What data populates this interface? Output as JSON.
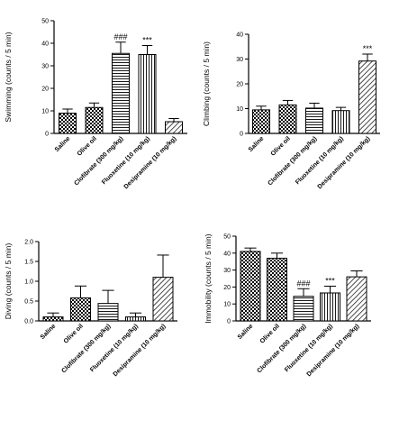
{
  "chart_data": [
    {
      "type": "bar",
      "ylabel": "Swimming (counts / 5 min)",
      "ylim": [
        0,
        50
      ],
      "yticks": [
        "0",
        "10",
        "20",
        "30",
        "40",
        "50"
      ],
      "categories": [
        "Saline",
        "Olive oil",
        "Clofibrate (300 mg/kg)",
        "Fluoxetine (10 mg/kg)",
        "Desipramine (10 mg/kg)"
      ],
      "values": [
        9,
        11.5,
        35.5,
        35,
        5.2
      ],
      "errors": [
        1.8,
        2.0,
        5.0,
        4.0,
        1.4
      ],
      "patterns": [
        "checker",
        "checker",
        "hlines",
        "vlines",
        "diag"
      ],
      "annotations": [
        "",
        "",
        "###",
        "***",
        ""
      ]
    },
    {
      "type": "bar",
      "ylabel": "Climbing (counts / 5 min)",
      "ylim": [
        0,
        40
      ],
      "yticks": [
        "0",
        "10",
        "20",
        "30",
        "40"
      ],
      "categories": [
        "Saline",
        "Olive oil",
        "Clofibrate (300 mg/kg)",
        "Fluoxetine (10 mg/kg)",
        "Desipramine (10 mg/kg)"
      ],
      "values": [
        9.5,
        11.5,
        10.2,
        9.2,
        29.2
      ],
      "errors": [
        1.5,
        1.8,
        2.0,
        1.3,
        2.8
      ],
      "patterns": [
        "checker",
        "checker",
        "hlines",
        "vlines",
        "diag"
      ],
      "annotations": [
        "",
        "",
        "",
        "",
        "***"
      ]
    },
    {
      "type": "bar",
      "ylabel": "Diving (counts / 5 min)",
      "ylim": [
        0,
        2.0
      ],
      "yticks": [
        "0.0",
        "0.5",
        "1.0",
        "1.5",
        "2.0"
      ],
      "categories": [
        "Saline",
        "Olive oil",
        "Clofibrate (300 mg/kg)",
        "Fluoxetine (10 mg/kg)",
        "Desipramine (10 mg/kg)"
      ],
      "values": [
        0.1,
        0.58,
        0.44,
        0.1,
        1.1
      ],
      "errors": [
        0.1,
        0.3,
        0.33,
        0.1,
        0.56
      ],
      "patterns": [
        "checker",
        "checker",
        "hlines",
        "vlines",
        "diag"
      ],
      "annotations": [
        "",
        "",
        "",
        "",
        ""
      ]
    },
    {
      "type": "bar",
      "ylabel": "Immobility (counts / 5 min)",
      "ylim": [
        0,
        50
      ],
      "yticks": [
        "0",
        "10",
        "20",
        "30",
        "40",
        "50"
      ],
      "categories": [
        "Saline",
        "Olive oil",
        "Clofibrate (300 mg/kg)",
        "Fluoxetine (10 mg/kg)",
        "Desipramine (10 mg/kg)"
      ],
      "values": [
        41,
        37,
        14.5,
        16.5,
        26
      ],
      "errors": [
        2.0,
        3.0,
        4.5,
        4.0,
        3.5
      ],
      "patterns": [
        "checker",
        "checker",
        "hlines",
        "vlines",
        "diag"
      ],
      "annotations": [
        "",
        "",
        "###",
        "***",
        ""
      ]
    }
  ]
}
